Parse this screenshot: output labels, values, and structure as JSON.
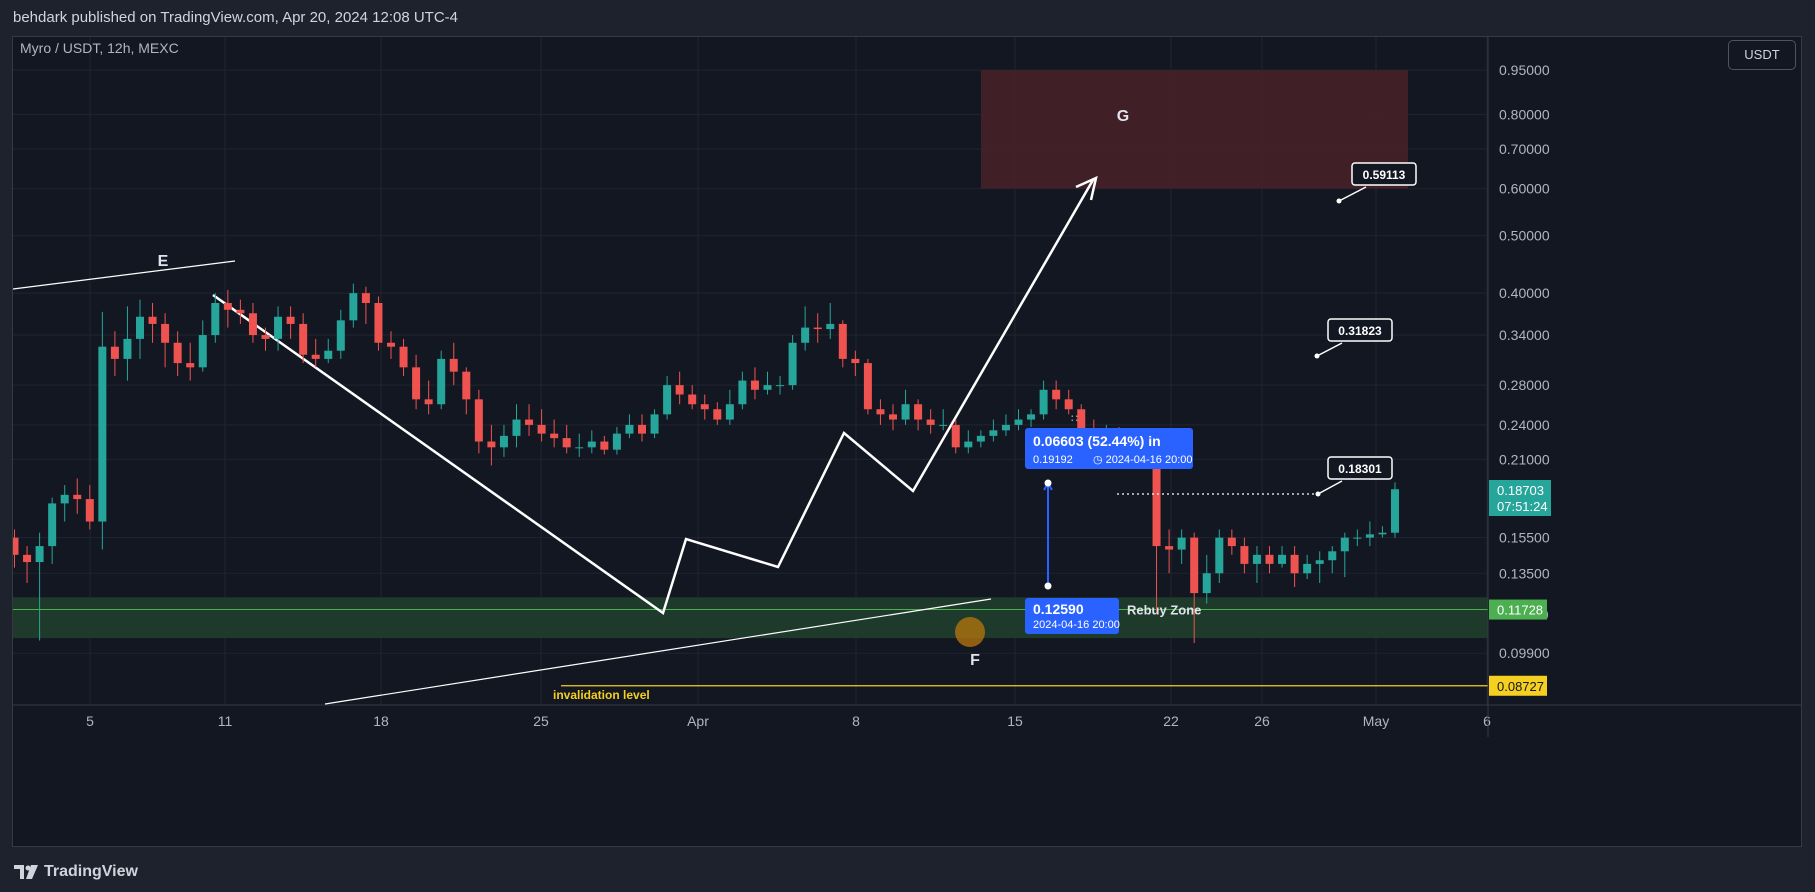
{
  "header": {
    "published": "behdark published on TradingView.com, Apr 20, 2024 12:08 UTC-4"
  },
  "footer": {
    "brand": "TradingView"
  },
  "toolbar": {
    "currency": "USDT"
  },
  "colors": {
    "up": "#26a69a",
    "down": "#ef5350",
    "drawing": "#ffffff",
    "target_zone": "#4a2128",
    "rebuy_zone": "#1d3a2a",
    "rebuy_line": "#4caf50",
    "invalidation": "#f5d020",
    "measure": "#2962ff"
  },
  "chart_data": {
    "type": "candlestick",
    "title": "Myro / USDT, 12h, MEXC",
    "y_scale": "log",
    "ylim": [
      0.081,
      1.08
    ],
    "y_ticks": [
      "0.95000",
      "0.80000",
      "0.70000",
      "0.60000",
      "0.50000",
      "0.40000",
      "0.34000",
      "0.28000",
      "0.24000",
      "0.21000",
      "0.15500",
      "0.13500",
      "0.11500",
      "0.09900"
    ],
    "x_ticks": [
      "5",
      "11",
      "18",
      "25",
      "Apr",
      "8",
      "15",
      "22",
      "26",
      "May",
      "6"
    ],
    "candles": [
      [
        0.155,
        0.145,
        0.16,
        0.138
      ],
      [
        0.145,
        0.141,
        0.15,
        0.13
      ],
      [
        0.141,
        0.15,
        0.158,
        0.104
      ],
      [
        0.15,
        0.177,
        0.181,
        0.14
      ],
      [
        0.177,
        0.183,
        0.19,
        0.165
      ],
      [
        0.183,
        0.18,
        0.195,
        0.17
      ],
      [
        0.18,
        0.165,
        0.19,
        0.16
      ],
      [
        0.165,
        0.325,
        0.372,
        0.148
      ],
      [
        0.325,
        0.31,
        0.345,
        0.29
      ],
      [
        0.31,
        0.335,
        0.38,
        0.285
      ],
      [
        0.335,
        0.365,
        0.39,
        0.31
      ],
      [
        0.365,
        0.355,
        0.385,
        0.33
      ],
      [
        0.355,
        0.33,
        0.37,
        0.3
      ],
      [
        0.33,
        0.305,
        0.345,
        0.29
      ],
      [
        0.305,
        0.3,
        0.33,
        0.285
      ],
      [
        0.3,
        0.34,
        0.36,
        0.295
      ],
      [
        0.34,
        0.385,
        0.4,
        0.33
      ],
      [
        0.385,
        0.375,
        0.405,
        0.35
      ],
      [
        0.375,
        0.37,
        0.39,
        0.355
      ],
      [
        0.37,
        0.34,
        0.385,
        0.33
      ],
      [
        0.34,
        0.335,
        0.35,
        0.32
      ],
      [
        0.335,
        0.365,
        0.38,
        0.32
      ],
      [
        0.365,
        0.355,
        0.38,
        0.335
      ],
      [
        0.355,
        0.315,
        0.37,
        0.305
      ],
      [
        0.315,
        0.31,
        0.335,
        0.3
      ],
      [
        0.31,
        0.32,
        0.335,
        0.305
      ],
      [
        0.32,
        0.36,
        0.375,
        0.31
      ],
      [
        0.36,
        0.4,
        0.415,
        0.35
      ],
      [
        0.4,
        0.385,
        0.41,
        0.355
      ],
      [
        0.385,
        0.33,
        0.395,
        0.32
      ],
      [
        0.33,
        0.325,
        0.345,
        0.31
      ],
      [
        0.325,
        0.3,
        0.335,
        0.29
      ],
      [
        0.3,
        0.265,
        0.315,
        0.255
      ],
      [
        0.265,
        0.26,
        0.285,
        0.25
      ],
      [
        0.26,
        0.31,
        0.32,
        0.255
      ],
      [
        0.31,
        0.295,
        0.33,
        0.28
      ],
      [
        0.295,
        0.265,
        0.3,
        0.25
      ],
      [
        0.265,
        0.225,
        0.275,
        0.215
      ],
      [
        0.225,
        0.22,
        0.24,
        0.205
      ],
      [
        0.22,
        0.23,
        0.24,
        0.212
      ],
      [
        0.23,
        0.245,
        0.26,
        0.22
      ],
      [
        0.245,
        0.24,
        0.26,
        0.23
      ],
      [
        0.24,
        0.232,
        0.255,
        0.225
      ],
      [
        0.232,
        0.228,
        0.245,
        0.22
      ],
      [
        0.228,
        0.22,
        0.24,
        0.215
      ],
      [
        0.22,
        0.22,
        0.232,
        0.212
      ],
      [
        0.22,
        0.225,
        0.235,
        0.215
      ],
      [
        0.225,
        0.218,
        0.23,
        0.214
      ],
      [
        0.218,
        0.232,
        0.238,
        0.214
      ],
      [
        0.232,
        0.24,
        0.25,
        0.228
      ],
      [
        0.24,
        0.232,
        0.25,
        0.225
      ],
      [
        0.232,
        0.25,
        0.255,
        0.228
      ],
      [
        0.25,
        0.28,
        0.29,
        0.245
      ],
      [
        0.28,
        0.27,
        0.295,
        0.26
      ],
      [
        0.27,
        0.26,
        0.28,
        0.255
      ],
      [
        0.26,
        0.255,
        0.27,
        0.245
      ],
      [
        0.255,
        0.245,
        0.262,
        0.24
      ],
      [
        0.245,
        0.26,
        0.275,
        0.24
      ],
      [
        0.26,
        0.285,
        0.295,
        0.255
      ],
      [
        0.285,
        0.275,
        0.3,
        0.265
      ],
      [
        0.275,
        0.28,
        0.295,
        0.27
      ],
      [
        0.28,
        0.28,
        0.29,
        0.27
      ],
      [
        0.28,
        0.33,
        0.34,
        0.275
      ],
      [
        0.33,
        0.35,
        0.38,
        0.32
      ],
      [
        0.35,
        0.348,
        0.37,
        0.33
      ],
      [
        0.348,
        0.355,
        0.385,
        0.335
      ],
      [
        0.355,
        0.31,
        0.36,
        0.3
      ],
      [
        0.31,
        0.305,
        0.32,
        0.29
      ],
      [
        0.305,
        0.255,
        0.31,
        0.25
      ],
      [
        0.255,
        0.25,
        0.265,
        0.24
      ],
      [
        0.25,
        0.245,
        0.26,
        0.235
      ],
      [
        0.245,
        0.26,
        0.275,
        0.24
      ],
      [
        0.26,
        0.245,
        0.265,
        0.235
      ],
      [
        0.245,
        0.24,
        0.255,
        0.232
      ],
      [
        0.24,
        0.24,
        0.255,
        0.235
      ],
      [
        0.24,
        0.22,
        0.245,
        0.215
      ],
      [
        0.22,
        0.225,
        0.235,
        0.215
      ],
      [
        0.225,
        0.23,
        0.235,
        0.22
      ],
      [
        0.23,
        0.235,
        0.245,
        0.225
      ],
      [
        0.235,
        0.24,
        0.25,
        0.23
      ],
      [
        0.24,
        0.245,
        0.255,
        0.235
      ],
      [
        0.245,
        0.25,
        0.255,
        0.238
      ],
      [
        0.25,
        0.275,
        0.285,
        0.245
      ],
      [
        0.275,
        0.265,
        0.285,
        0.255
      ],
      [
        0.265,
        0.255,
        0.275,
        0.25
      ],
      [
        0.255,
        0.235,
        0.26,
        0.228
      ],
      [
        0.235,
        0.23,
        0.245,
        0.225
      ],
      [
        0.23,
        0.23,
        0.24,
        0.215
      ],
      [
        0.23,
        0.225,
        0.238,
        0.218
      ],
      [
        0.225,
        0.215,
        0.23,
        0.21
      ],
      [
        0.215,
        0.212,
        0.225,
        0.205
      ],
      [
        0.212,
        0.15,
        0.215,
        0.116
      ],
      [
        0.15,
        0.148,
        0.16,
        0.135
      ],
      [
        0.148,
        0.155,
        0.16,
        0.14
      ],
      [
        0.155,
        0.125,
        0.158,
        0.103
      ],
      [
        0.125,
        0.135,
        0.145,
        0.12
      ],
      [
        0.135,
        0.155,
        0.16,
        0.13
      ],
      [
        0.155,
        0.15,
        0.16,
        0.145
      ],
      [
        0.15,
        0.14,
        0.155,
        0.135
      ],
      [
        0.14,
        0.145,
        0.15,
        0.13
      ],
      [
        0.145,
        0.14,
        0.15,
        0.135
      ],
      [
        0.14,
        0.145,
        0.15,
        0.138
      ],
      [
        0.145,
        0.135,
        0.15,
        0.128
      ],
      [
        0.135,
        0.14,
        0.145,
        0.132
      ],
      [
        0.14,
        0.142,
        0.147,
        0.13
      ],
      [
        0.142,
        0.147,
        0.15,
        0.135
      ],
      [
        0.147,
        0.155,
        0.158,
        0.133
      ],
      [
        0.155,
        0.155,
        0.16,
        0.15
      ],
      [
        0.155,
        0.157,
        0.165,
        0.15
      ],
      [
        0.157,
        0.158,
        0.162,
        0.155
      ],
      [
        0.158,
        0.187,
        0.192,
        0.155
      ]
    ],
    "zones": {
      "target": {
        "label": "G",
        "from": 0.6,
        "to": 0.95
      },
      "rebuy": {
        "label": "Rebuy Zone",
        "from": 0.105,
        "to": 0.123,
        "level": "0.11728"
      }
    },
    "levels": {
      "invalidation": {
        "label": "invalidation level",
        "value": "0.08727"
      },
      "current": {
        "value": "0.18703",
        "timer": "07:51:24"
      }
    },
    "annotations": {
      "wave_labels": [
        "E",
        "F"
      ],
      "targets": [
        "0.59113",
        "0.31823",
        "0.18301"
      ]
    },
    "measure": {
      "change": "0.06603 (52.44%) in",
      "end_price": "0.19192",
      "end_time": "2024-04-16  20:00",
      "start_price": "0.12590",
      "start_time": "2024-04-16 20:00"
    }
  }
}
